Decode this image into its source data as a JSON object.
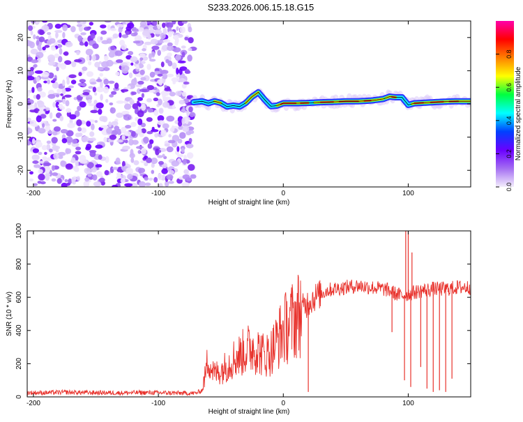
{
  "title": "S233.2026.006.15.18.G15",
  "chart_data": [
    {
      "type": "heatmap",
      "title": "S233.2026.006.15.18.G15",
      "xlabel": "Height of straight line (km)",
      "ylabel": "Frequency (Hz)",
      "xlim": [
        -205,
        150
      ],
      "ylim": [
        -25,
        25
      ],
      "x_ticks": [
        -200,
        -100,
        0,
        100
      ],
      "x_tick_labels": [
        "-200",
        "-100",
        "0",
        "100"
      ],
      "y_ticks": [
        -20,
        -10,
        0,
        10,
        20
      ],
      "y_tick_labels": [
        "-20",
        "-10",
        "0",
        "10",
        "20"
      ],
      "noise_region_x": [
        -205,
        -72
      ],
      "signal_region_x": [
        -72,
        150
      ],
      "signal_track": {
        "x": [
          -72,
          -65,
          -60,
          -55,
          -50,
          -45,
          -40,
          -35,
          -30,
          -25,
          -20,
          -15,
          -10,
          -5,
          0,
          10,
          20,
          30,
          40,
          50,
          60,
          70,
          80,
          85,
          90,
          95,
          100,
          105,
          110,
          120,
          130,
          140,
          150
        ],
        "freq": [
          0.5,
          0.8,
          0.2,
          0.8,
          0.3,
          -0.8,
          -0.5,
          -0.8,
          0.3,
          2.2,
          3.5,
          1.3,
          -0.7,
          -0.5,
          0.2,
          0.2,
          0.3,
          0.5,
          0.6,
          0.8,
          0.8,
          1.0,
          1.5,
          2.2,
          2.0,
          2.0,
          -0.3,
          0.2,
          0.3,
          0.5,
          0.7,
          0.8,
          0.8
        ]
      },
      "colorbar": {
        "label": "Normalized spectral amplitude",
        "range": [
          0,
          1
        ],
        "ticks": [
          0.0,
          0.2,
          0.4,
          0.6,
          0.8
        ],
        "tick_labels": [
          "0.0",
          "0.2",
          "0.4",
          "0.6",
          "0.8"
        ],
        "colors": [
          "#f4eefc",
          "#a46ef2",
          "#6a00ff",
          "#0040ff",
          "#00ffff",
          "#00ff40",
          "#ffff00",
          "#ff8000",
          "#ff0000",
          "#ff00aa"
        ]
      }
    },
    {
      "type": "line",
      "xlabel": "Height of straight line (km)",
      "ylabel": "SNR (10 * v/v)",
      "xlim": [
        -205,
        150
      ],
      "ylim": [
        0,
        1000
      ],
      "x_ticks": [
        -200,
        -100,
        0,
        100
      ],
      "x_tick_labels": [
        "-200",
        "-100",
        "0",
        "100"
      ],
      "y_ticks": [
        0,
        200,
        400,
        600,
        800,
        1000
      ],
      "y_tick_labels": [
        "0",
        "200",
        "400",
        "600",
        "800",
        "1000"
      ],
      "color": "#e8312b",
      "series": [
        {
          "name": "SNR",
          "x": [
            -205,
            -190,
            -175,
            -160,
            -145,
            -130,
            -115,
            -100,
            -85,
            -70,
            -65,
            -62,
            -60,
            -58,
            -55,
            -50,
            -45,
            -40,
            -35,
            -30,
            -25,
            -20,
            -15,
            -10,
            -5,
            0,
            5,
            10,
            15,
            20,
            25,
            30,
            35,
            40,
            50,
            60,
            70,
            80,
            85,
            90,
            95,
            100,
            105,
            110,
            120,
            130,
            140,
            150
          ],
          "y": [
            25,
            25,
            28,
            26,
            25,
            24,
            26,
            25,
            23,
            22,
            40,
            150,
            250,
            180,
            140,
            160,
            190,
            230,
            250,
            280,
            300,
            280,
            250,
            270,
            340,
            400,
            440,
            480,
            530,
            570,
            600,
            620,
            640,
            650,
            660,
            670,
            660,
            650,
            640,
            620,
            610,
            620,
            630,
            640,
            650,
            650,
            660,
            660
          ]
        }
      ],
      "spikes_down": [
        {
          "x": 20,
          "y": 30
        },
        {
          "x": 87,
          "y": 390
        },
        {
          "x": 97,
          "y": 100
        },
        {
          "x": 102,
          "y": 60
        },
        {
          "x": 110,
          "y": 180
        },
        {
          "x": 115,
          "y": 50
        },
        {
          "x": 120,
          "y": 30
        },
        {
          "x": 125,
          "y": 40
        },
        {
          "x": 130,
          "y": 30
        },
        {
          "x": 135,
          "y": 110
        }
      ],
      "spikes_up": [
        {
          "x": 98,
          "y": 1000
        },
        {
          "x": 100,
          "y": 1000
        },
        {
          "x": 103,
          "y": 870
        }
      ]
    }
  ]
}
